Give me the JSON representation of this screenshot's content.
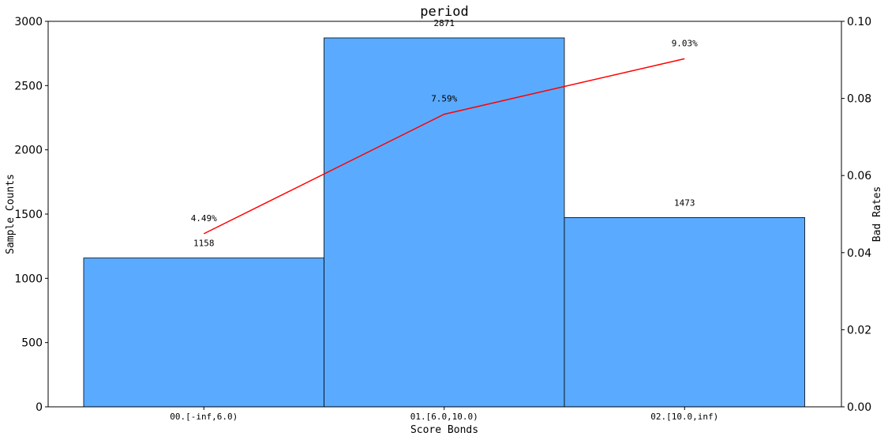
{
  "chart_data": {
    "type": "bar",
    "title": "period",
    "xlabel": "Score Bonds",
    "ylabel": "Sample Counts",
    "y2label": "Bad Rates",
    "categories": [
      "00.[-inf,6.0)",
      "01.[6.0,10.0)",
      "02.[10.0,inf)"
    ],
    "ylim": [
      0,
      3000
    ],
    "y2lim": [
      0,
      0.1
    ],
    "yticks": [
      0,
      500,
      1000,
      1500,
      2000,
      2500,
      3000
    ],
    "y2ticks": [
      "0.00",
      "0.02",
      "0.04",
      "0.06",
      "0.08",
      "0.10"
    ],
    "series": [
      {
        "type": "bar",
        "axis": "left",
        "values": [
          1158,
          2871,
          1473
        ],
        "labels": [
          "1158",
          "2871",
          "1473"
        ],
        "color": "#5aabff"
      },
      {
        "type": "line",
        "axis": "right",
        "values": [
          0.0449,
          0.0759,
          0.0903
        ],
        "labels": [
          "4.49%",
          "7.59%",
          "9.03%"
        ],
        "color": "#ff0000"
      }
    ],
    "grid": false
  }
}
